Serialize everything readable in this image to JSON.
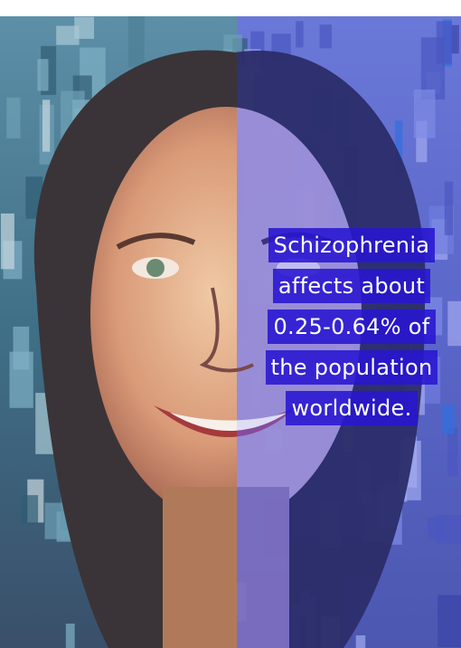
{
  "caption": {
    "lines": [
      "Schizophrenia",
      "affects about",
      "0.25-0.64% of",
      "the population",
      "worldwide."
    ]
  }
}
